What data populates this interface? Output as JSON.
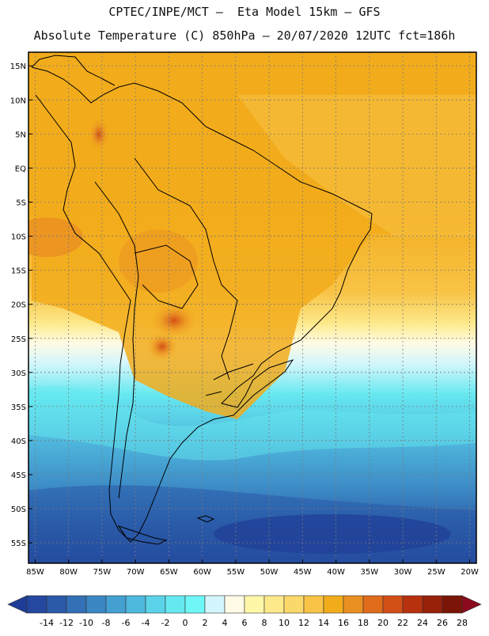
{
  "title_line1": "CPTEC/INPE/MCT –  Eta Model 15km – GFS",
  "title_line2": "Absolute Temperature (C) 850hPa – 20/07/2020 12UTC fct=186h",
  "lat_labels": [
    "15N",
    "10N",
    "5N",
    "EQ",
    "5S",
    "10S",
    "15S",
    "20S",
    "25S",
    "30S",
    "35S",
    "40S",
    "45S",
    "50S",
    "55S"
  ],
  "lat_values": [
    15,
    10,
    5,
    0,
    -5,
    -10,
    -15,
    -20,
    -25,
    -30,
    -35,
    -40,
    -45,
    -50,
    -55
  ],
  "lon_labels": [
    "85W",
    "80W",
    "75W",
    "70W",
    "65W",
    "60W",
    "55W",
    "50W",
    "45W",
    "40W",
    "35W",
    "30W",
    "25W",
    "20W"
  ],
  "lon_values": [
    -85,
    -80,
    -75,
    -70,
    -65,
    -60,
    -55,
    -50,
    -45,
    -40,
    -35,
    -30,
    -25,
    -20
  ],
  "colorbar": {
    "labels": [
      "-14",
      "-12",
      "-10",
      "-8",
      "-6",
      "-4",
      "-2",
      "0",
      "2",
      "4",
      "6",
      "8",
      "10",
      "12",
      "14",
      "16",
      "18",
      "20",
      "22",
      "24",
      "26",
      "28"
    ],
    "colors": [
      "#1f3d96",
      "#24489f",
      "#2a5aa8",
      "#3370b5",
      "#3b87c4",
      "#44a0d1",
      "#4fb8dd",
      "#5bd3e8",
      "#66e8f0",
      "#6ff7f7",
      "#d2f6fb",
      "#fffbe6",
      "#fff7a8",
      "#fde98a",
      "#fbd86a",
      "#f8c346",
      "#f2ac1b",
      "#ea8f22",
      "#e06c1b",
      "#d24f15",
      "#b8310f",
      "#98210c",
      "#7a1508",
      "#8b0a1e"
    ]
  },
  "colors": {
    "land_border": "#000000",
    "grid": "#7a7a7a"
  }
}
